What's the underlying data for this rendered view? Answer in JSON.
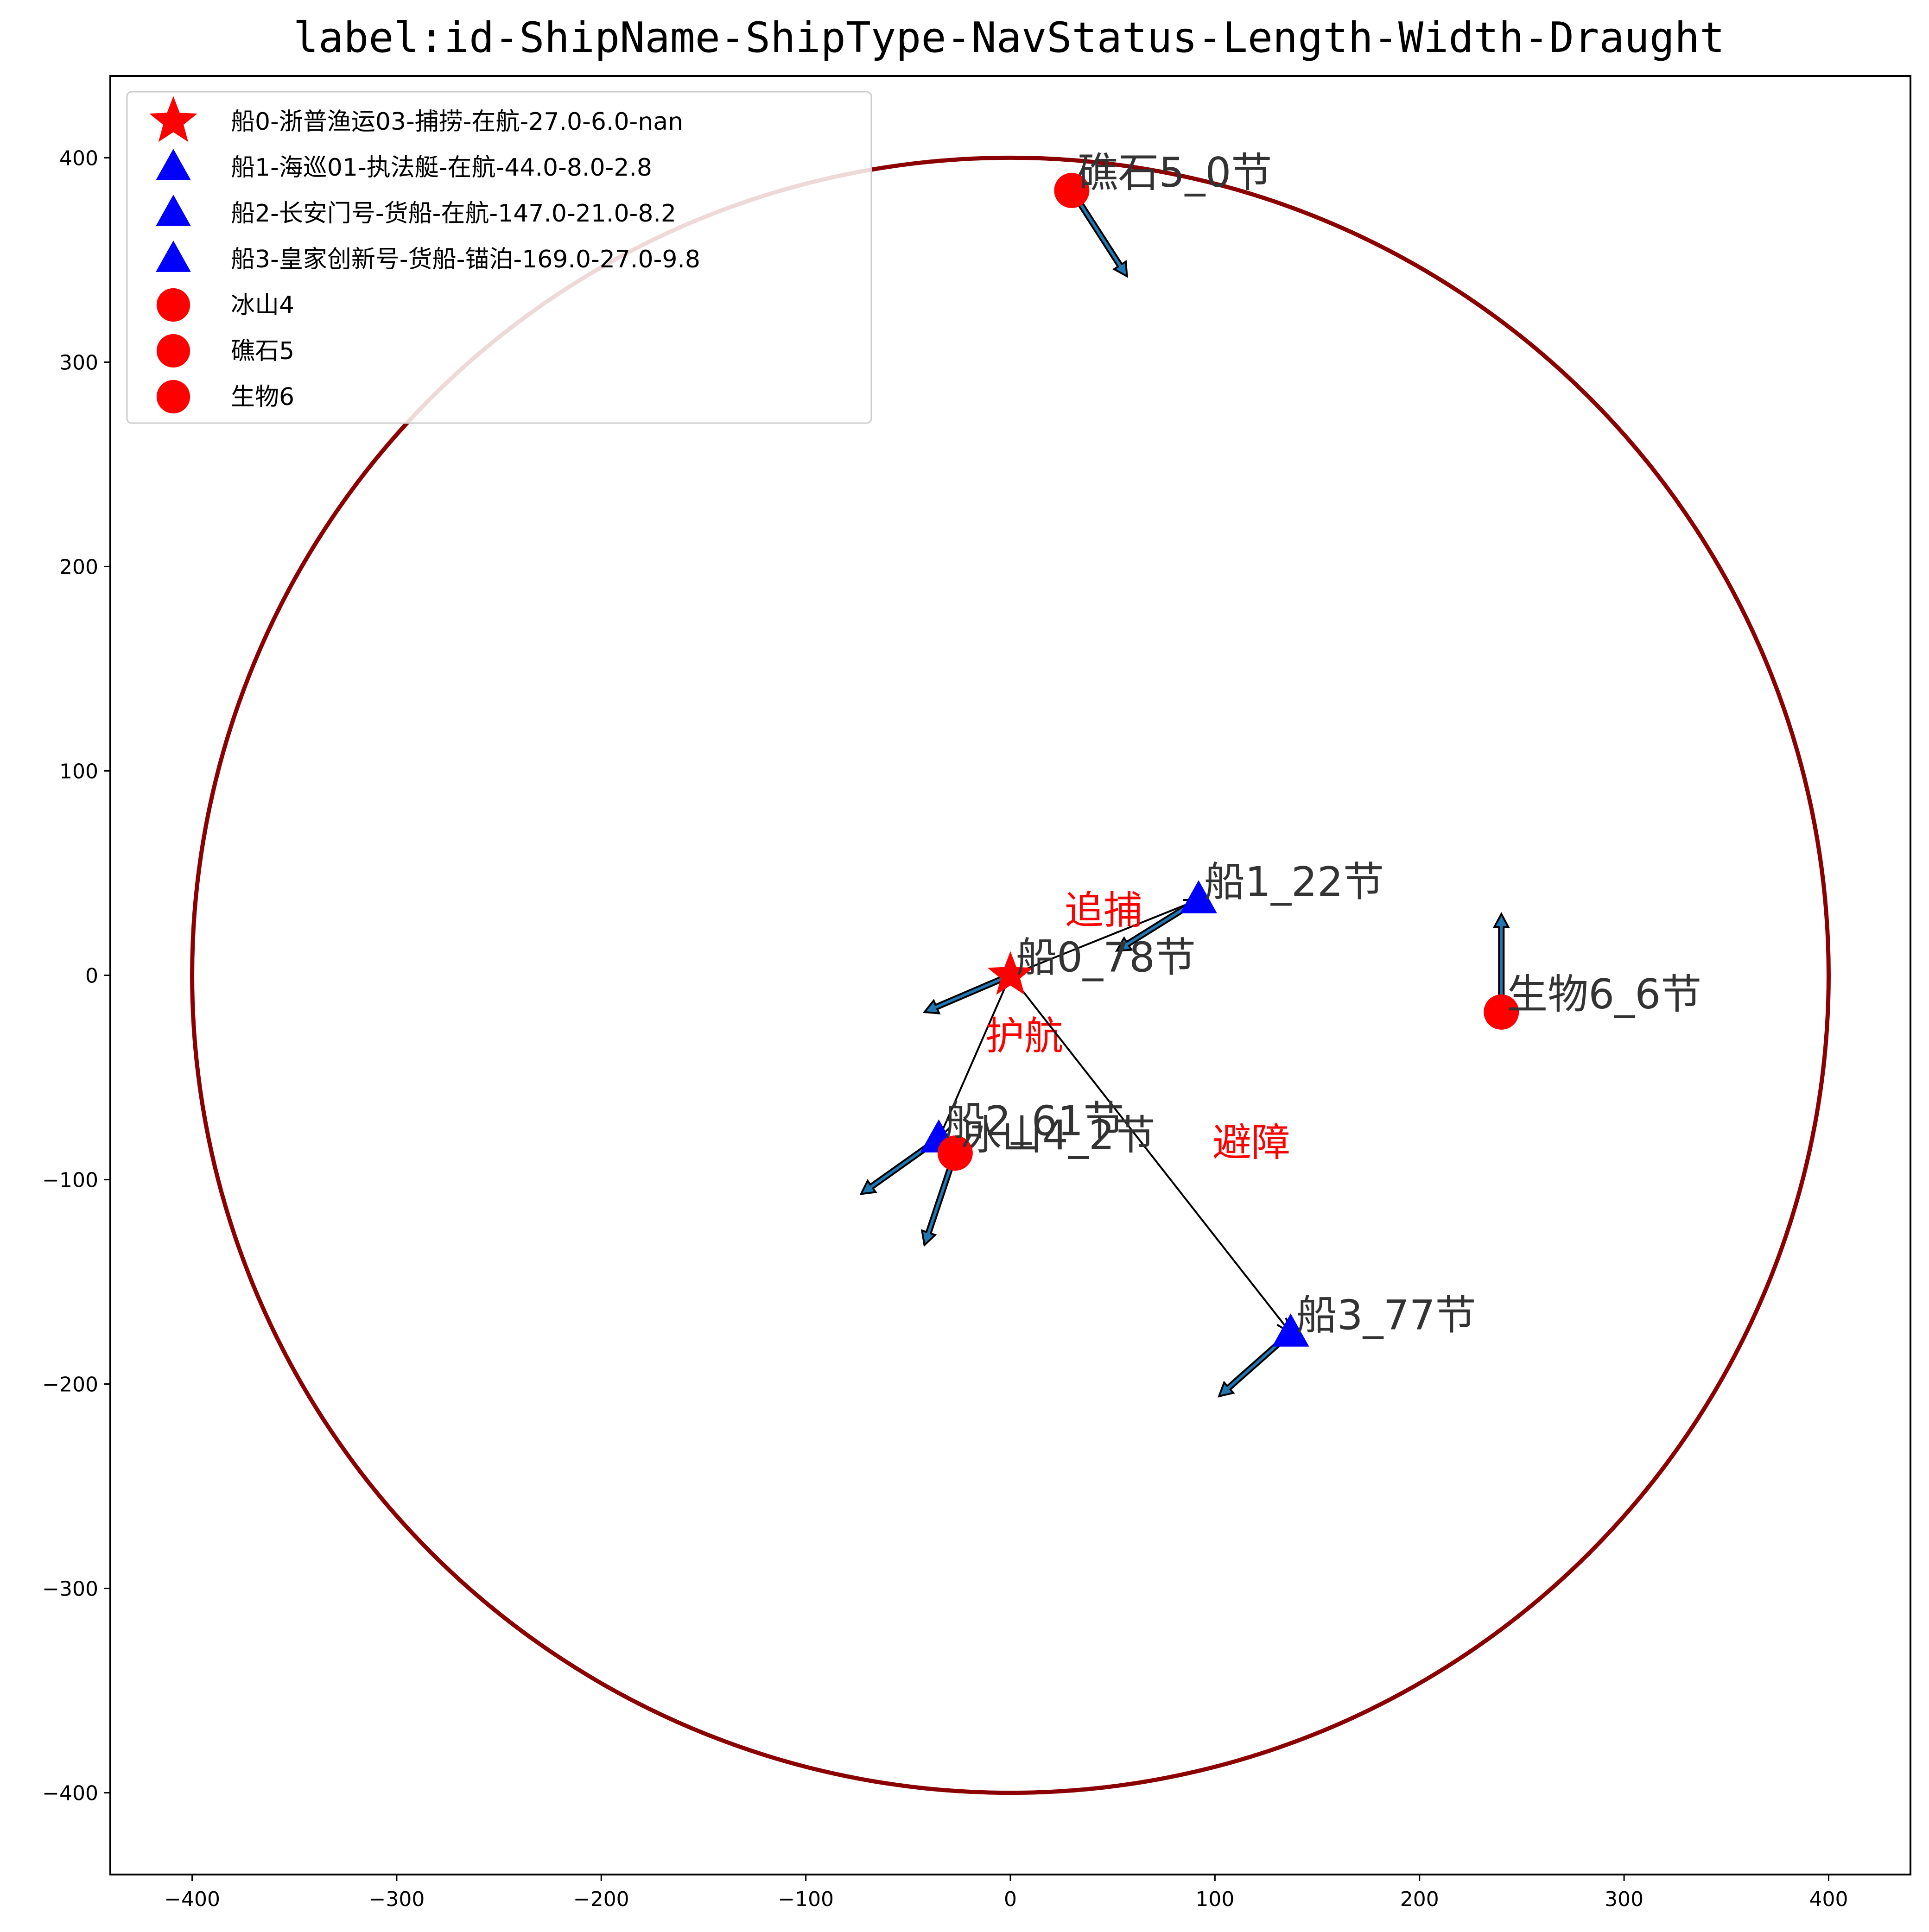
{
  "chart_data": {
    "type": "scatter",
    "title": "label:id-ShipName-ShipType-NavStatus-Length-Width-Draught",
    "xlabel": "",
    "ylabel": "",
    "xlim": [
      -440,
      440
    ],
    "ylim": [
      -440,
      440
    ],
    "xticks": [
      -400,
      -300,
      -200,
      -100,
      0,
      100,
      200,
      300,
      400
    ],
    "yticks": [
      -400,
      -300,
      -200,
      -100,
      0,
      100,
      200,
      300,
      400
    ],
    "xtick_labels": [
      "−400",
      "−300",
      "−200",
      "−100",
      "0",
      "100",
      "200",
      "300",
      "400"
    ],
    "ytick_labels": [
      "−400",
      "−300",
      "−200",
      "−100",
      "0",
      "100",
      "200",
      "300",
      "400"
    ],
    "grid": false,
    "legend_position": "upper-left",
    "range_circle": {
      "center": [
        0,
        0
      ],
      "radius": 400,
      "color": "#8b0000"
    },
    "objects": [
      {
        "id": "ship0",
        "kind": "own-ship",
        "marker": "star",
        "color": "#ff0000",
        "x": 0,
        "y": 0,
        "label": "船0_78节",
        "arrow_to": [
          -42,
          -18
        ],
        "legend": "船0-浙普渔运03-捕捞-在航-27.0-6.0-nan"
      },
      {
        "id": "ship1",
        "kind": "ship",
        "marker": "triangle",
        "color": "#0000ff",
        "x": 92,
        "y": 37,
        "label": "船1_22节",
        "arrow_to": [
          52,
          12
        ],
        "legend": "船1-海巡01-执法艇-在航-44.0-8.0-2.8"
      },
      {
        "id": "ship2",
        "kind": "ship",
        "marker": "triangle",
        "color": "#0000ff",
        "x": -35,
        "y": -80,
        "label": "船2_61节",
        "arrow_to": [
          -73,
          -107
        ],
        "legend": "船2-长安门号-货船-在航-147.0-21.0-8.2"
      },
      {
        "id": "ship3",
        "kind": "ship",
        "marker": "triangle",
        "color": "#0000ff",
        "x": 137,
        "y": -175,
        "label": "船3_77节",
        "arrow_to": [
          102,
          -206
        ],
        "legend": "船3-皇家创新号-货船-锚泊-169.0-27.0-9.8"
      },
      {
        "id": "iceberg4",
        "kind": "obstacle",
        "marker": "circle",
        "color": "#ff0000",
        "x": -27,
        "y": -87,
        "label": "冰山4_2节",
        "arrow_to": [
          -42,
          -132
        ],
        "legend": "冰山4"
      },
      {
        "id": "reef5",
        "kind": "obstacle",
        "marker": "circle",
        "color": "#ff0000",
        "x": 30,
        "y": 384,
        "label": "礁石5_0节",
        "arrow_to": [
          57,
          342
        ],
        "legend": "礁石5"
      },
      {
        "id": "creature6",
        "kind": "obstacle",
        "marker": "circle",
        "color": "#ff0000",
        "x": 240,
        "y": -18,
        "label": "生物6_6节",
        "arrow_to": [
          240,
          30
        ],
        "legend": "生物6"
      }
    ],
    "relations": [
      {
        "from": "ship0",
        "to": "ship1",
        "text": "追捕"
      },
      {
        "from": "ship0",
        "to": "ship2",
        "text": "护航"
      },
      {
        "from": "ship0",
        "to": "ship3",
        "text": "避障"
      }
    ]
  }
}
